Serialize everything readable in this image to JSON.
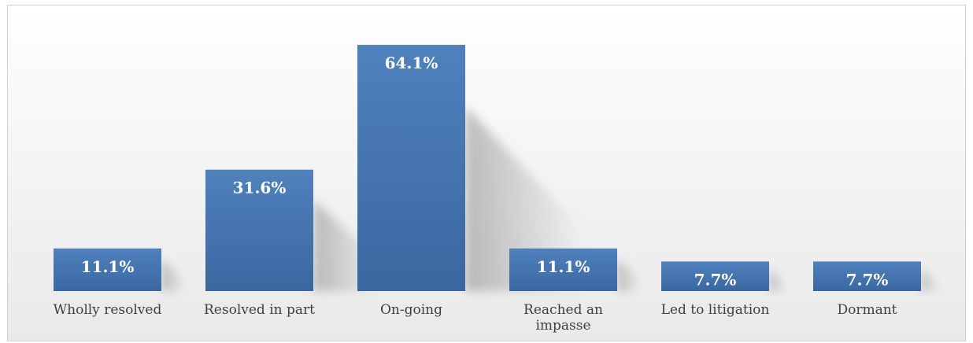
{
  "chart_data": {
    "type": "bar",
    "categories": [
      [
        "Wholly resolved"
      ],
      [
        "Resolved in part"
      ],
      [
        "On-going"
      ],
      [
        "Reached an",
        "impasse"
      ],
      [
        "Led to litigation"
      ],
      [
        "Dormant"
      ]
    ],
    "values": [
      11.1,
      31.6,
      64.1,
      11.1,
      7.7,
      7.7
    ],
    "value_labels": [
      "11.1%",
      "31.6%",
      "64.1%",
      "11.1%",
      "7.7%",
      "7.7%"
    ],
    "title": "",
    "xlabel": "",
    "ylabel": "",
    "ylim": [
      0,
      70
    ],
    "grid": false,
    "legend": "none",
    "colors": {
      "bar_top": "#4f81bd",
      "bar_bottom": "#3b67a0",
      "shadow": "#9a9a9a",
      "label_text": "#404040"
    }
  }
}
